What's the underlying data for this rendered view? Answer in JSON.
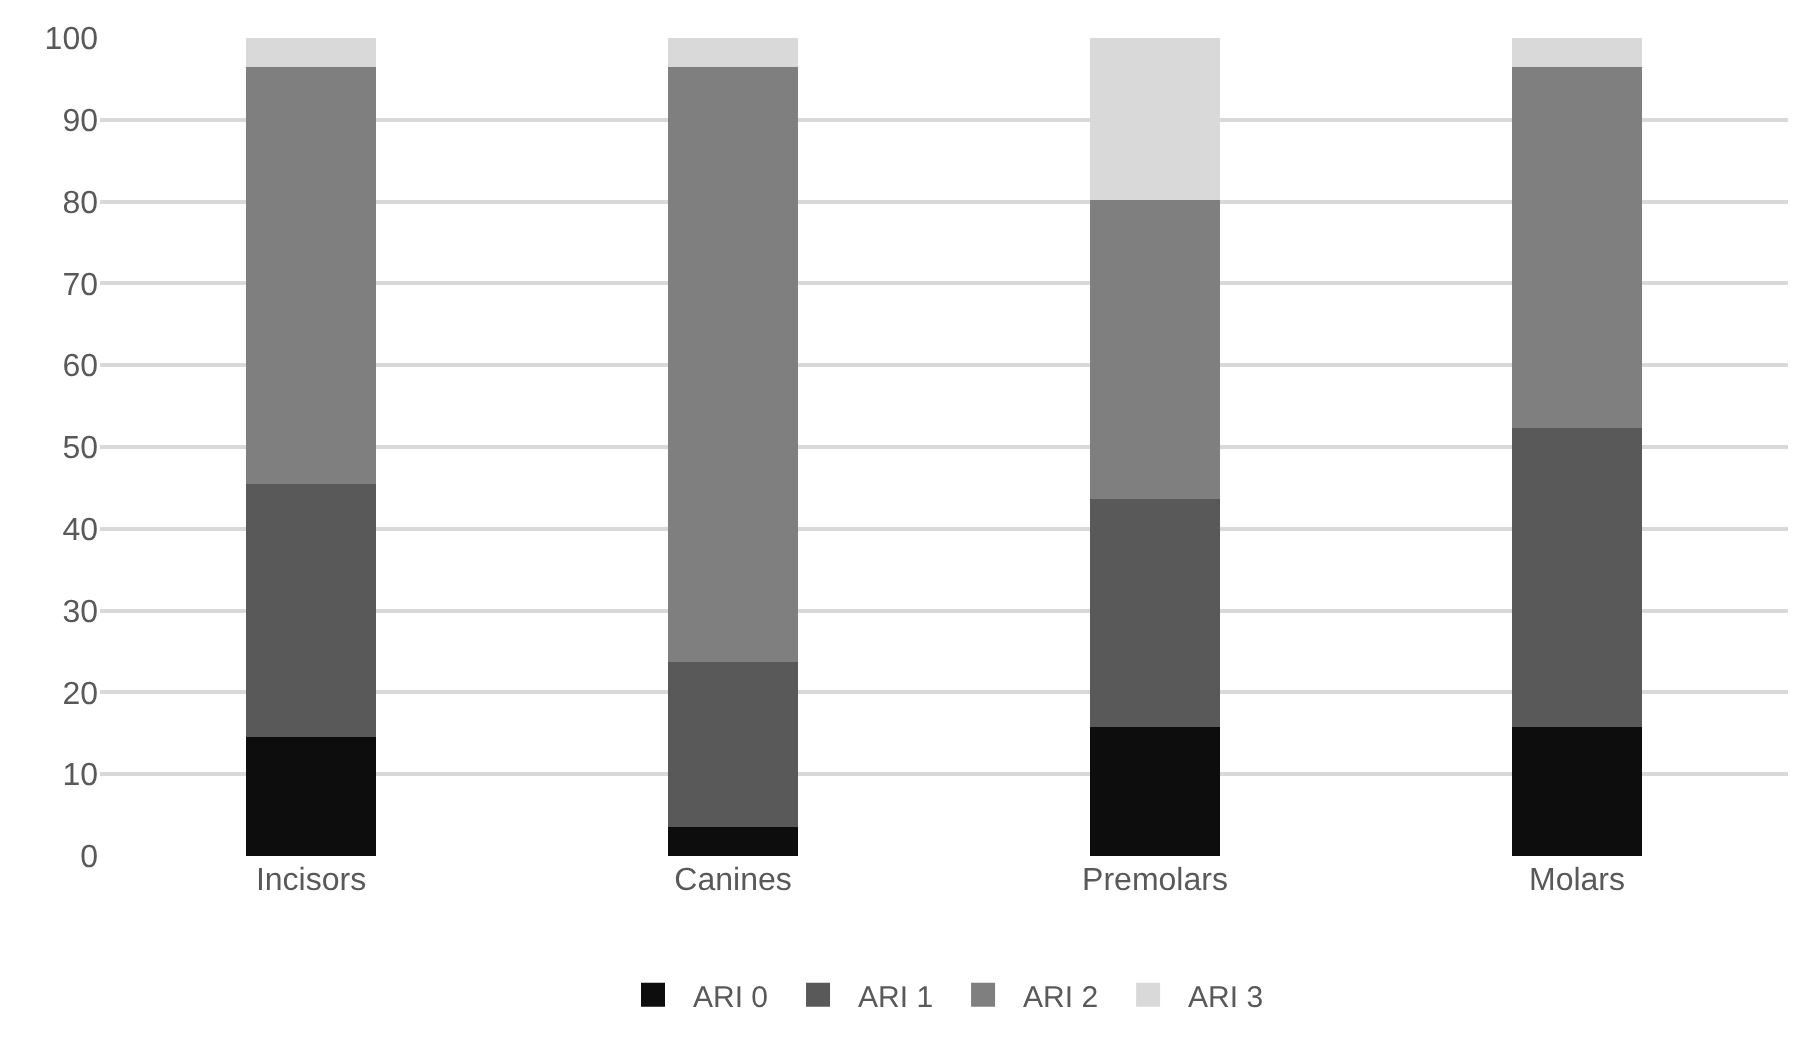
{
  "chart_data": {
    "type": "bar",
    "stacked": true,
    "categories": [
      "Incisors",
      "Canines",
      "Premolars",
      "Molars"
    ],
    "series": [
      {
        "name": "ARI 0",
        "color": "#0d0d0d",
        "values": [
          14.6,
          3.5,
          15.8,
          15.8
        ]
      },
      {
        "name": "ARI 1",
        "color": "#595959",
        "values": [
          30.9,
          20.2,
          27.9,
          36.5
        ]
      },
      {
        "name": "ARI 2",
        "color": "#7f7f7f",
        "values": [
          50.9,
          72.7,
          36.5,
          44.1
        ]
      },
      {
        "name": "ARI 3",
        "color": "#d9d9d9",
        "values": [
          3.6,
          3.6,
          19.8,
          3.6
        ]
      }
    ],
    "ylim": [
      0,
      100
    ],
    "yticks": [
      0,
      10,
      20,
      30,
      40,
      50,
      60,
      70,
      80,
      90,
      100
    ],
    "grid": "y",
    "legend": "bottom"
  }
}
